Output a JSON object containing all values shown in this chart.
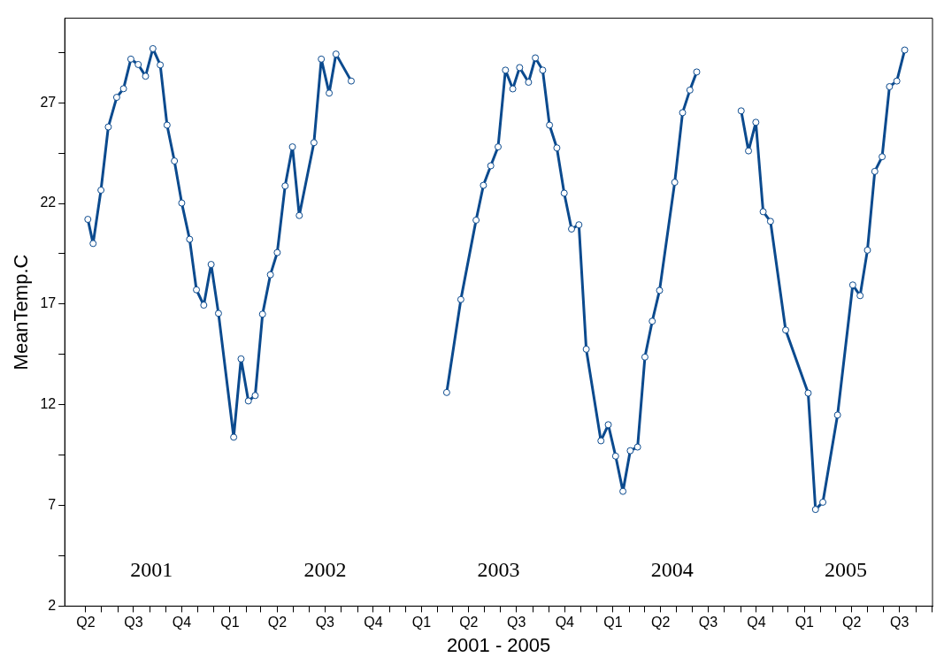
{
  "chart_data": {
    "type": "line",
    "xlabel": "2001 - 2005",
    "ylabel": "MeanTemp.C",
    "x": [
      "2001-04-05",
      "2001-04-15",
      "2001-04-30",
      "2001-05-14",
      "2001-05-30",
      "2001-06-12",
      "2001-06-26",
      "2001-07-10",
      "2001-07-24",
      "2001-08-07",
      "2001-08-21",
      "2001-09-03",
      "2001-09-17",
      "2001-10-01",
      "2001-10-16",
      "2001-10-29",
      "2001-11-12",
      "2001-11-26",
      "2001-12-10",
      "2002-01-08",
      "2002-01-22",
      "2002-02-05",
      "2002-02-18",
      "2002-03-04",
      "2002-03-19",
      "2002-04-01",
      "2002-04-16",
      "2002-04-30",
      "2002-05-13",
      "2002-06-10",
      "2002-06-24",
      "2002-07-09",
      "2002-07-22",
      "2002-08-20",
      "2002-11-24",
      "2003-02-18",
      "2003-03-17",
      "2003-04-15",
      "2003-04-29",
      "2003-05-13",
      "2003-05-27",
      "2003-06-10",
      "2003-06-24",
      "2003-07-07",
      "2003-07-24",
      "2003-08-06",
      "2003-08-20",
      "2003-09-02",
      "2003-09-16",
      "2003-09-30",
      "2003-10-14",
      "2003-10-28",
      "2003-11-11",
      "2003-12-09",
      "2003-12-23",
      "2004-01-06",
      "2004-01-20",
      "2004-02-03",
      "2004-02-17",
      "2004-03-02",
      "2004-03-16",
      "2004-03-30",
      "2004-04-28",
      "2004-05-13",
      "2004-05-27",
      "2004-06-09",
      "2004-07-20",
      "2004-09-02",
      "2004-09-16",
      "2004-09-30",
      "2004-10-14",
      "2004-10-28",
      "2004-11-26",
      "2005-01-08",
      "2005-01-22",
      "2005-02-05",
      "2005-03-05",
      "2005-04-03",
      "2005-04-17",
      "2005-05-01",
      "2005-05-15",
      "2005-05-29",
      "2005-06-12",
      "2005-06-26",
      "2005-07-11"
    ],
    "series": [
      {
        "color": "#0b4a8e",
        "values": [
          21.21,
          20.01,
          22.66,
          25.8,
          27.27,
          27.7,
          29.17,
          28.9,
          28.32,
          29.69,
          28.88,
          25.89,
          24.11,
          22.02,
          20.22,
          17.71,
          16.95,
          18.97,
          16.54,
          10.39,
          14.28,
          12.19,
          12.46,
          16.5,
          18.46,
          19.56,
          22.87,
          24.81,
          21.4,
          25.02,
          29.17,
          27.48,
          29.42,
          28.08,
          null,
          12.61,
          17.23,
          21.17,
          22.9,
          23.87,
          24.81,
          28.62,
          27.69,
          28.75,
          28.02,
          29.23,
          28.62,
          25.89,
          24.76,
          22.51,
          20.73,
          20.94,
          14.76,
          10.21,
          11.01,
          9.45,
          7.7,
          9.72,
          9.9,
          14.37,
          16.15,
          17.68,
          23.05,
          26.51,
          27.63,
          28.53,
          null,
          26.6,
          24.61,
          26.03,
          21.59,
          21.11,
          15.71,
          12.58,
          6.8,
          7.16,
          11.49,
          17.95,
          17.42,
          19.68,
          23.59,
          24.32,
          27.8,
          28.08,
          29.62
        ]
      }
    ],
    "marker": "circle",
    "line_style": "solid",
    "grid": false,
    "legend": false,
    "ylim": [
      2,
      31.2
    ],
    "yticks": [
      2,
      {
        "value": 4.5,
        "label": null
      },
      7,
      {
        "value": 9.5,
        "label": null
      },
      12,
      {
        "value": 14.5,
        "label": null
      },
      17,
      {
        "value": 19.5,
        "label": null
      },
      22,
      {
        "value": 24.5,
        "label": null
      },
      27,
      {
        "value": 29.5,
        "label": null
      }
    ],
    "xlim": [
      "2001-02-20",
      "2005-09-02"
    ],
    "xticks": [
      {
        "value": "2001-04",
        "label": "Q2"
      },
      {
        "value": "2001-05",
        "label": null
      },
      {
        "value": "2001-06",
        "label": null
      },
      {
        "value": "2001-07",
        "label": "Q3"
      },
      {
        "value": "2001-08",
        "label": null
      },
      {
        "value": "2001-09",
        "label": null
      },
      {
        "value": "2001-10",
        "label": "Q4"
      },
      {
        "value": "2001-11",
        "label": null
      },
      {
        "value": "2001-12",
        "label": null
      },
      {
        "value": "2002-01",
        "label": "Q1"
      },
      {
        "value": "2002-02",
        "label": null
      },
      {
        "value": "2002-03",
        "label": null
      },
      {
        "value": "2002-04",
        "label": "Q2"
      },
      {
        "value": "2002-05",
        "label": null
      },
      {
        "value": "2002-06",
        "label": null
      },
      {
        "value": "2002-07",
        "label": "Q3"
      },
      {
        "value": "2002-08",
        "label": null
      },
      {
        "value": "2002-09",
        "label": null
      },
      {
        "value": "2002-10",
        "label": "Q4"
      },
      {
        "value": "2002-11",
        "label": null
      },
      {
        "value": "2002-12",
        "label": null
      },
      {
        "value": "2003-01",
        "label": "Q1"
      },
      {
        "value": "2003-02",
        "label": null
      },
      {
        "value": "2003-03",
        "label": null
      },
      {
        "value": "2003-04",
        "label": "Q2"
      },
      {
        "value": "2003-05",
        "label": null
      },
      {
        "value": "2003-06",
        "label": null
      },
      {
        "value": "2003-07",
        "label": "Q3"
      },
      {
        "value": "2003-08",
        "label": null
      },
      {
        "value": "2003-09",
        "label": null
      },
      {
        "value": "2003-10",
        "label": "Q4"
      },
      {
        "value": "2003-11",
        "label": null
      },
      {
        "value": "2003-12",
        "label": null
      },
      {
        "value": "2004-01",
        "label": "Q1"
      },
      {
        "value": "2004-02",
        "label": null
      },
      {
        "value": "2004-03",
        "label": null
      },
      {
        "value": "2004-04",
        "label": "Q2"
      },
      {
        "value": "2004-05",
        "label": null
      },
      {
        "value": "2004-06",
        "label": null
      },
      {
        "value": "2004-07",
        "label": "Q3"
      },
      {
        "value": "2004-08",
        "label": null
      },
      {
        "value": "2004-09",
        "label": null
      },
      {
        "value": "2004-10",
        "label": "Q4"
      },
      {
        "value": "2004-11",
        "label": null
      },
      {
        "value": "2004-12",
        "label": null
      },
      {
        "value": "2005-01",
        "label": "Q1"
      },
      {
        "value": "2005-02",
        "label": null
      },
      {
        "value": "2005-03",
        "label": null
      },
      {
        "value": "2005-04",
        "label": "Q2"
      },
      {
        "value": "2005-05",
        "label": null
      },
      {
        "value": "2005-06",
        "label": null
      },
      {
        "value": "2005-07",
        "label": "Q3"
      },
      {
        "value": "2005-08",
        "label": null
      },
      {
        "value": "2005-09",
        "label": null
      }
    ],
    "annotations": [
      "2001",
      "2002",
      "2003",
      "2004",
      "2005"
    ]
  }
}
